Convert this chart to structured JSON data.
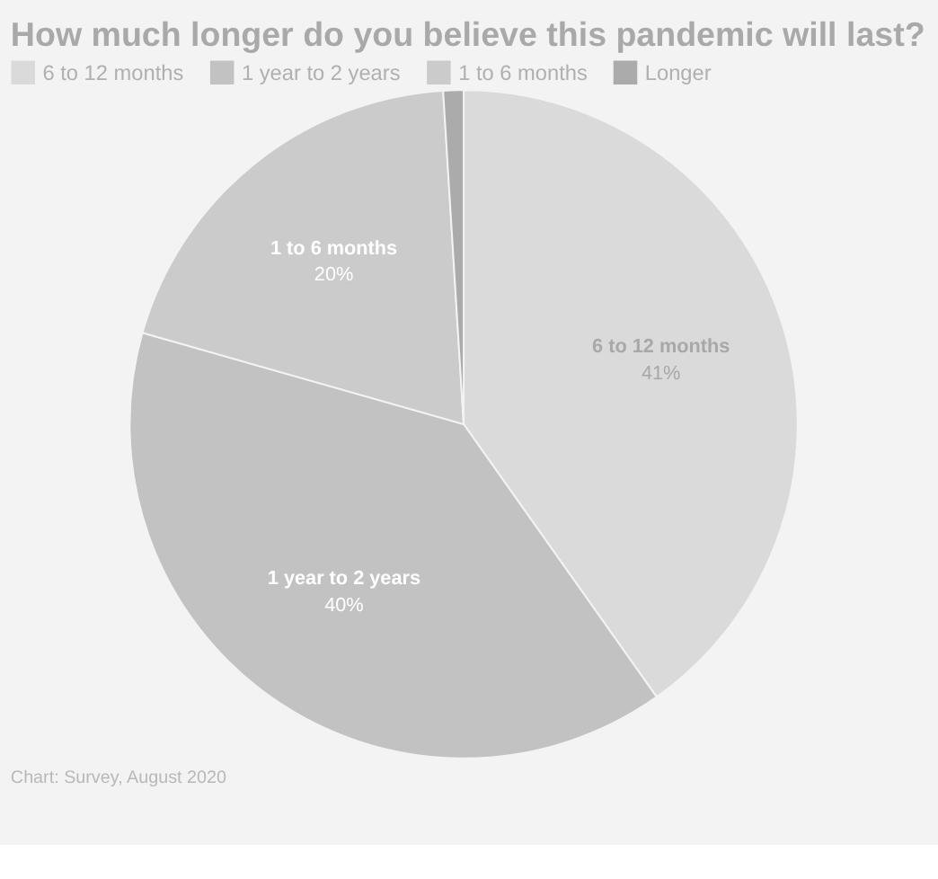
{
  "chart_data": {
    "type": "pie",
    "title": "How much longer do you believe this pandemic will last?",
    "categories": [
      "6 to 12 months",
      "1 year to 2 years",
      "1 to 6 months",
      "Longer"
    ],
    "values": [
      41,
      40,
      20,
      1
    ],
    "value_labels": [
      "41%",
      "40%",
      "20%",
      null
    ],
    "colors": [
      "#dadada",
      "#c2c2c2",
      "#cbcbcb",
      "#ababab"
    ],
    "legend": "top",
    "annotations": [
      "Chart: Survey, August 2020"
    ]
  }
}
